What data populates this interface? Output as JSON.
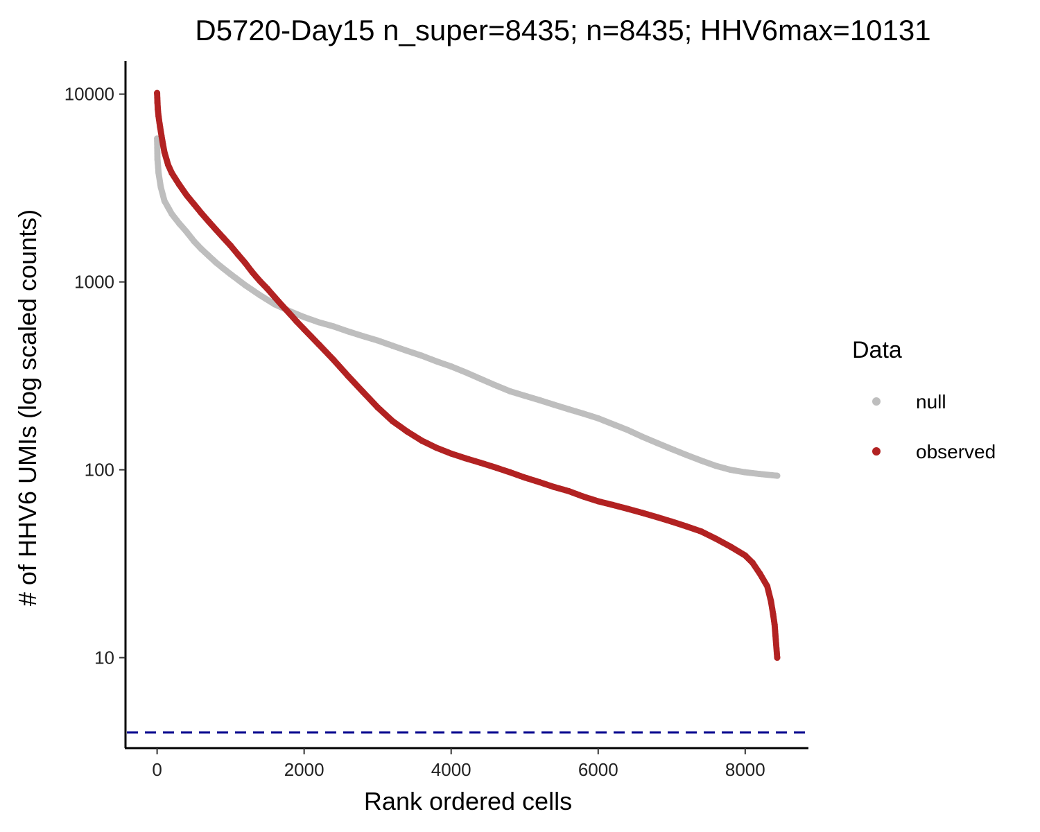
{
  "chart_data": {
    "type": "scatter",
    "title": "D5720-Day15 n_super=8435; n=8435; HHV6max=10131",
    "xlabel": "Rank ordered cells",
    "ylabel": "# of HHV6 UMIs (log scaled counts)",
    "x_scale": "linear",
    "y_scale": "log10",
    "xlim": [
      -430,
      8860
    ],
    "ylim": [
      3.3,
      15000
    ],
    "x_ticks": [
      0,
      2000,
      4000,
      6000,
      8000
    ],
    "x_tick_labels": [
      "0",
      "2000",
      "4000",
      "6000",
      "8000"
    ],
    "y_ticks": [
      10,
      100,
      1000,
      10000
    ],
    "y_tick_labels": [
      "10",
      "100",
      "1000",
      "10000"
    ],
    "grid": false,
    "legend": {
      "title": "Data",
      "position": "right",
      "entries": [
        "null",
        "observed"
      ]
    },
    "reference_line": {
      "y": 4,
      "style": "dashed",
      "color": "#00008b"
    },
    "series": [
      {
        "name": "null",
        "color": "#bebebe",
        "points": [
          [
            0,
            5800
          ],
          [
            5,
            4500
          ],
          [
            20,
            3800
          ],
          [
            50,
            3200
          ],
          [
            100,
            2700
          ],
          [
            200,
            2300
          ],
          [
            300,
            2050
          ],
          [
            400,
            1850
          ],
          [
            500,
            1650
          ],
          [
            600,
            1500
          ],
          [
            700,
            1380
          ],
          [
            800,
            1270
          ],
          [
            900,
            1180
          ],
          [
            1000,
            1100
          ],
          [
            1200,
            960
          ],
          [
            1400,
            850
          ],
          [
            1600,
            760
          ],
          [
            1800,
            700
          ],
          [
            2000,
            650
          ],
          [
            2200,
            610
          ],
          [
            2400,
            580
          ],
          [
            2600,
            545
          ],
          [
            2800,
            515
          ],
          [
            3000,
            488
          ],
          [
            3200,
            458
          ],
          [
            3400,
            430
          ],
          [
            3600,
            405
          ],
          [
            3800,
            378
          ],
          [
            4000,
            355
          ],
          [
            4200,
            330
          ],
          [
            4400,
            305
          ],
          [
            4600,
            282
          ],
          [
            4800,
            262
          ],
          [
            5000,
            248
          ],
          [
            5200,
            235
          ],
          [
            5400,
            222
          ],
          [
            5600,
            210
          ],
          [
            5800,
            199
          ],
          [
            6000,
            188
          ],
          [
            6200,
            175
          ],
          [
            6400,
            163
          ],
          [
            6600,
            150
          ],
          [
            6800,
            139
          ],
          [
            7000,
            129
          ],
          [
            7200,
            120
          ],
          [
            7400,
            112
          ],
          [
            7600,
            105
          ],
          [
            7800,
            100
          ],
          [
            8000,
            97
          ],
          [
            8200,
            95
          ],
          [
            8435,
            93
          ]
        ]
      },
      {
        "name": "observed",
        "color": "#b22222",
        "points": [
          [
            0,
            10131
          ],
          [
            5,
            9000
          ],
          [
            10,
            8300
          ],
          [
            20,
            7600
          ],
          [
            40,
            6700
          ],
          [
            60,
            6000
          ],
          [
            80,
            5400
          ],
          [
            100,
            4900
          ],
          [
            150,
            4200
          ],
          [
            200,
            3800
          ],
          [
            300,
            3300
          ],
          [
            400,
            2900
          ],
          [
            500,
            2600
          ],
          [
            600,
            2330
          ],
          [
            700,
            2100
          ],
          [
            800,
            1900
          ],
          [
            900,
            1720
          ],
          [
            1000,
            1560
          ],
          [
            1100,
            1400
          ],
          [
            1200,
            1260
          ],
          [
            1300,
            1120
          ],
          [
            1400,
            1010
          ],
          [
            1500,
            920
          ],
          [
            1600,
            830
          ],
          [
            1700,
            750
          ],
          [
            1800,
            680
          ],
          [
            1900,
            615
          ],
          [
            2000,
            560
          ],
          [
            2200,
            465
          ],
          [
            2400,
            385
          ],
          [
            2600,
            315
          ],
          [
            2800,
            260
          ],
          [
            3000,
            215
          ],
          [
            3200,
            182
          ],
          [
            3400,
            160
          ],
          [
            3600,
            143
          ],
          [
            3800,
            131
          ],
          [
            4000,
            122
          ],
          [
            4200,
            115
          ],
          [
            4400,
            109
          ],
          [
            4600,
            103
          ],
          [
            4800,
            97
          ],
          [
            5000,
            91
          ],
          [
            5200,
            86
          ],
          [
            5400,
            81
          ],
          [
            5600,
            77
          ],
          [
            5800,
            72
          ],
          [
            6000,
            68
          ],
          [
            6200,
            65
          ],
          [
            6400,
            62
          ],
          [
            6600,
            59
          ],
          [
            6800,
            56
          ],
          [
            7000,
            53
          ],
          [
            7200,
            50
          ],
          [
            7400,
            47
          ],
          [
            7600,
            43
          ],
          [
            7800,
            39
          ],
          [
            8000,
            35
          ],
          [
            8100,
            32
          ],
          [
            8200,
            28
          ],
          [
            8300,
            24
          ],
          [
            8350,
            20
          ],
          [
            8380,
            17
          ],
          [
            8400,
            15
          ],
          [
            8435,
            10
          ]
        ]
      }
    ]
  }
}
